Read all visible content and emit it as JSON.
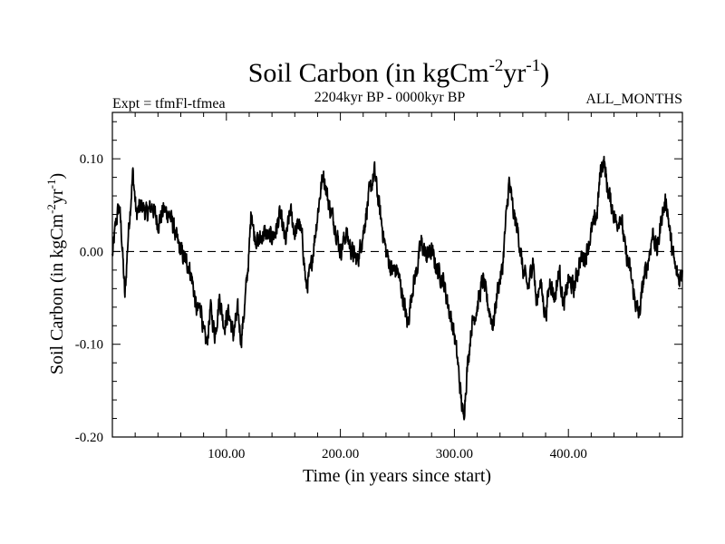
{
  "chart_data": {
    "type": "line",
    "title": "Soil Carbon (in kgCm",
    "title_exp1": "-2",
    "title_mid": "yr",
    "title_exp2": "-1",
    "title_end": ")",
    "subtitle_left": "Expt = tfmFl-tfmea",
    "subtitle_center": "2204kyr BP - 0000kyr BP",
    "subtitle_right": "ALL_MONTHS",
    "xlabel": "Time (in years since start)",
    "ylabel": "Soil Carbon (in kgCm",
    "ylabel_exp1": "-2",
    "ylabel_mid": "yr",
    "ylabel_exp2": "-1",
    "ylabel_end": ")",
    "xlim": [
      0,
      500
    ],
    "ylim": [
      -0.2,
      0.15
    ],
    "x_ticks": [
      100,
      200,
      300,
      400
    ],
    "x_tick_labels": [
      "100.00",
      "200.00",
      "300.00",
      "400.00"
    ],
    "y_ticks": [
      0.1,
      0.0,
      -0.1,
      -0.2
    ],
    "y_tick_labels": [
      "0.10",
      "0.00",
      "-0.10",
      "-0.20"
    ],
    "reference_line": {
      "y": 0.0,
      "style": "dashed"
    },
    "series": [
      {
        "name": "Soil Carbon",
        "x_step": 1,
        "anchors": [
          [
            0,
            -0.005
          ],
          [
            3,
            0.03
          ],
          [
            6,
            0.05
          ],
          [
            8,
            0.02
          ],
          [
            11,
            -0.05
          ],
          [
            14,
            0.02
          ],
          [
            18,
            0.085
          ],
          [
            21,
            0.04
          ],
          [
            26,
            0.05
          ],
          [
            30,
            0.04
          ],
          [
            35,
            0.05
          ],
          [
            40,
            0.03
          ],
          [
            45,
            0.045
          ],
          [
            50,
            0.04
          ],
          [
            54,
            0.025
          ],
          [
            57,
            0.01
          ],
          [
            62,
            -0.005
          ],
          [
            67,
            -0.015
          ],
          [
            70,
            -0.03
          ],
          [
            74,
            -0.065
          ],
          [
            78,
            -0.06
          ],
          [
            80,
            -0.09
          ],
          [
            83,
            -0.1
          ],
          [
            86,
            -0.06
          ],
          [
            90,
            -0.09
          ],
          [
            94,
            -0.05
          ],
          [
            98,
            -0.08
          ],
          [
            102,
            -0.065
          ],
          [
            106,
            -0.09
          ],
          [
            110,
            -0.065
          ],
          [
            113,
            -0.095
          ],
          [
            116,
            -0.06
          ],
          [
            120,
            0.0
          ],
          [
            122,
            0.05
          ],
          [
            124,
            0.02
          ],
          [
            128,
            0.01
          ],
          [
            133,
            0.02
          ],
          [
            138,
            0.015
          ],
          [
            143,
            0.02
          ],
          [
            147,
            0.04
          ],
          [
            152,
            0.01
          ],
          [
            156,
            0.045
          ],
          [
            160,
            0.02
          ],
          [
            164,
            0.03
          ],
          [
            167,
            0.01
          ],
          [
            170,
            -0.04
          ],
          [
            174,
            -0.02
          ],
          [
            178,
            0.02
          ],
          [
            182,
            0.06
          ],
          [
            185,
            0.085
          ],
          [
            190,
            0.05
          ],
          [
            195,
            0.03
          ],
          [
            200,
            0.0
          ],
          [
            205,
            0.02
          ],
          [
            210,
            0.0
          ],
          [
            215,
            -0.01
          ],
          [
            220,
            0.02
          ],
          [
            225,
            0.06
          ],
          [
            230,
            0.085
          ],
          [
            235,
            0.04
          ],
          [
            240,
            0.0
          ],
          [
            245,
            -0.02
          ],
          [
            250,
            -0.02
          ],
          [
            255,
            -0.05
          ],
          [
            259,
            -0.08
          ],
          [
            263,
            -0.04
          ],
          [
            267,
            -0.02
          ],
          [
            271,
            0.01
          ],
          [
            275,
            -0.005
          ],
          [
            280,
            0.0
          ],
          [
            285,
            -0.02
          ],
          [
            290,
            -0.03
          ],
          [
            295,
            -0.06
          ],
          [
            300,
            -0.09
          ],
          [
            303,
            -0.12
          ],
          [
            306,
            -0.16
          ],
          [
            308,
            -0.18
          ],
          [
            311,
            -0.13
          ],
          [
            315,
            -0.08
          ],
          [
            320,
            -0.06
          ],
          [
            325,
            -0.03
          ],
          [
            330,
            -0.06
          ],
          [
            334,
            -0.08
          ],
          [
            338,
            -0.04
          ],
          [
            342,
            -0.02
          ],
          [
            345,
            0.03
          ],
          [
            348,
            0.075
          ],
          [
            352,
            0.04
          ],
          [
            356,
            0.02
          ],
          [
            360,
            -0.02
          ],
          [
            365,
            -0.04
          ],
          [
            369,
            -0.005
          ],
          [
            372,
            -0.06
          ],
          [
            375,
            -0.03
          ],
          [
            380,
            -0.07
          ],
          [
            384,
            -0.03
          ],
          [
            388,
            -0.05
          ],
          [
            392,
            -0.02
          ],
          [
            396,
            -0.06
          ],
          [
            400,
            -0.03
          ],
          [
            405,
            -0.04
          ],
          [
            410,
            -0.01
          ],
          [
            415,
            -0.005
          ],
          [
            420,
            0.02
          ],
          [
            425,
            0.04
          ],
          [
            428,
            0.085
          ],
          [
            431,
            0.1
          ],
          [
            434,
            0.07
          ],
          [
            438,
            0.05
          ],
          [
            442,
            0.03
          ],
          [
            446,
            0.04
          ],
          [
            450,
            0.0
          ],
          [
            454,
            -0.02
          ],
          [
            458,
            -0.05
          ],
          [
            462,
            -0.07
          ],
          [
            466,
            -0.03
          ],
          [
            470,
            -0.01
          ],
          [
            474,
            0.02
          ],
          [
            478,
            0.0
          ],
          [
            482,
            0.04
          ],
          [
            486,
            0.055
          ],
          [
            490,
            0.01
          ],
          [
            494,
            -0.02
          ],
          [
            497,
            -0.03
          ],
          [
            500,
            -0.02
          ]
        ]
      }
    ]
  }
}
